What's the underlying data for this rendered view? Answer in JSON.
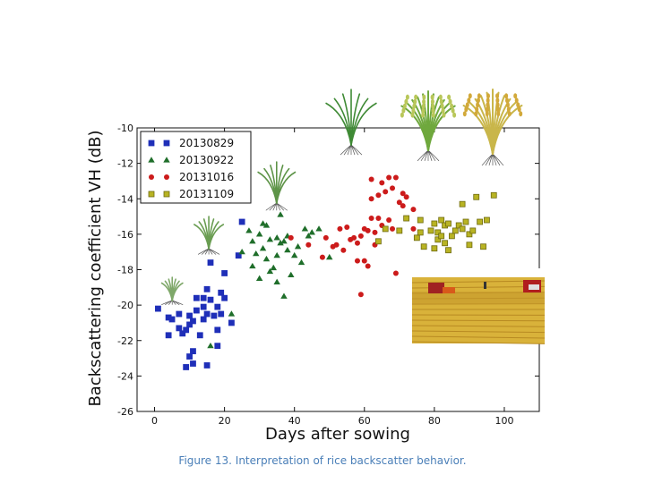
{
  "caption": "Figure 13. Interpretation of rice backscatter behavior.",
  "chart_data": {
    "type": "scatter",
    "title": "",
    "xlabel": "Days after sowing",
    "ylabel": "Backscattering coefficient VH (dB)",
    "xlim": [
      -5,
      110
    ],
    "ylim": [
      -26,
      -10
    ],
    "xticks": [
      0,
      20,
      40,
      60,
      80,
      100
    ],
    "yticks": [
      -26,
      -24,
      -22,
      -20,
      -18,
      -16,
      -14,
      -12,
      -10
    ],
    "legend_position": "top-left",
    "series": [
      {
        "name": "20130829",
        "marker": "square",
        "color": "#1f2fb8",
        "points": [
          [
            1,
            -20.2
          ],
          [
            4,
            -21.7
          ],
          [
            4,
            -20.7
          ],
          [
            5,
            -20.8
          ],
          [
            7,
            -21.3
          ],
          [
            7,
            -20.5
          ],
          [
            8,
            -21.6
          ],
          [
            9,
            -23.5
          ],
          [
            9,
            -21.4
          ],
          [
            10,
            -22.9
          ],
          [
            10,
            -21.1
          ],
          [
            10,
            -20.6
          ],
          [
            11,
            -23.3
          ],
          [
            11,
            -22.6
          ],
          [
            11,
            -20.9
          ],
          [
            12,
            -19.6
          ],
          [
            12,
            -20.3
          ],
          [
            13,
            -21.7
          ],
          [
            14,
            -20.1
          ],
          [
            14,
            -19.6
          ],
          [
            14,
            -20.8
          ],
          [
            15,
            -20.5
          ],
          [
            15,
            -19.1
          ],
          [
            15,
            -23.4
          ],
          [
            16,
            -17.6
          ],
          [
            16,
            -19.7
          ],
          [
            17,
            -20.6
          ],
          [
            18,
            -22.3
          ],
          [
            18,
            -20.1
          ],
          [
            18,
            -21.4
          ],
          [
            19,
            -19.3
          ],
          [
            19,
            -20.5
          ],
          [
            20,
            -19.6
          ],
          [
            20,
            -18.2
          ],
          [
            22,
            -21
          ],
          [
            24,
            -17.2
          ],
          [
            25,
            -15.3
          ]
        ]
      },
      {
        "name": "20130922",
        "marker": "triangle",
        "color": "#1f6e2a",
        "points": [
          [
            16,
            -22.3
          ],
          [
            22,
            -20.5
          ],
          [
            25,
            -17
          ],
          [
            27,
            -15.8
          ],
          [
            28,
            -17.8
          ],
          [
            28,
            -16.4
          ],
          [
            29,
            -17.1
          ],
          [
            30,
            -16
          ],
          [
            30,
            -18.5
          ],
          [
            31,
            -15.4
          ],
          [
            31,
            -16.8
          ],
          [
            32,
            -15.5
          ],
          [
            32,
            -17.4
          ],
          [
            33,
            -16.3
          ],
          [
            33,
            -18.1
          ],
          [
            34,
            -17.9
          ],
          [
            35,
            -16.2
          ],
          [
            35,
            -17.2
          ],
          [
            35,
            -18.7
          ],
          [
            36,
            -16.5
          ],
          [
            36,
            -14.9
          ],
          [
            37,
            -16.4
          ],
          [
            37,
            -19.5
          ],
          [
            38,
            -16.9
          ],
          [
            38,
            -16.1
          ],
          [
            39,
            -18.3
          ],
          [
            40,
            -17.2
          ],
          [
            41,
            -16.7
          ],
          [
            42,
            -17.6
          ],
          [
            43,
            -15.7
          ],
          [
            44,
            -16.1
          ],
          [
            45,
            -15.9
          ],
          [
            47,
            -15.7
          ],
          [
            50,
            -17.3
          ]
        ]
      },
      {
        "name": "20131016",
        "marker": "circle",
        "color": "#cc1b1b",
        "points": [
          [
            39,
            -16.2
          ],
          [
            44,
            -16.6
          ],
          [
            48,
            -17.3
          ],
          [
            49,
            -16.2
          ],
          [
            51,
            -16.7
          ],
          [
            52,
            -16.6
          ],
          [
            53,
            -15.7
          ],
          [
            54,
            -16.9
          ],
          [
            55,
            -15.6
          ],
          [
            56,
            -16.3
          ],
          [
            57,
            -16.2
          ],
          [
            58,
            -16.5
          ],
          [
            58,
            -17.5
          ],
          [
            59,
            -19.4
          ],
          [
            59,
            -16.1
          ],
          [
            60,
            -17.5
          ],
          [
            60,
            -15.7
          ],
          [
            61,
            -15.8
          ],
          [
            61,
            -17.8
          ],
          [
            62,
            -14
          ],
          [
            62,
            -12.9
          ],
          [
            62,
            -15.1
          ],
          [
            63,
            -15.9
          ],
          [
            63,
            -16.6
          ],
          [
            64,
            -15.1
          ],
          [
            64,
            -13.8
          ],
          [
            65,
            -13.1
          ],
          [
            65,
            -15.5
          ],
          [
            66,
            -13.6
          ],
          [
            67,
            -15.2
          ],
          [
            67,
            -12.8
          ],
          [
            68,
            -13.4
          ],
          [
            68,
            -15.7
          ],
          [
            69,
            -12.8
          ],
          [
            69,
            -18.2
          ],
          [
            70,
            -14.2
          ],
          [
            71,
            -13.7
          ],
          [
            71,
            -14.4
          ],
          [
            72,
            -13.9
          ],
          [
            74,
            -15.7
          ],
          [
            74,
            -14.6
          ]
        ]
      },
      {
        "name": "20131109",
        "marker": "square",
        "color": "#b8b323",
        "points": [
          [
            64,
            -16.4
          ],
          [
            66,
            -15.7
          ],
          [
            70,
            -15.8
          ],
          [
            72,
            -15.1
          ],
          [
            75,
            -16.2
          ],
          [
            76,
            -15.2
          ],
          [
            76,
            -15.9
          ],
          [
            77,
            -16.7
          ],
          [
            79,
            -15.8
          ],
          [
            80,
            -16.8
          ],
          [
            80,
            -15.4
          ],
          [
            81,
            -15.9
          ],
          [
            81,
            -16.3
          ],
          [
            82,
            -16.1
          ],
          [
            82,
            -15.2
          ],
          [
            83,
            -15.5
          ],
          [
            83,
            -16.5
          ],
          [
            84,
            -15.4
          ],
          [
            84,
            -16.9
          ],
          [
            85,
            -16.1
          ],
          [
            86,
            -15.8
          ],
          [
            87,
            -15.5
          ],
          [
            88,
            -14.3
          ],
          [
            88,
            -15.7
          ],
          [
            89,
            -15.3
          ],
          [
            90,
            -16
          ],
          [
            90,
            -16.6
          ],
          [
            91,
            -15.8
          ],
          [
            92,
            -13.9
          ],
          [
            93,
            -15.3
          ],
          [
            94,
            -16.7
          ],
          [
            95,
            -15.2
          ],
          [
            97,
            -13.8
          ]
        ]
      }
    ]
  },
  "illustrations": [
    {
      "name": "seedling-small",
      "kind": "rice-plant",
      "leaf_color": "#7fa86a",
      "days": 3
    },
    {
      "name": "seedling-medium",
      "kind": "rice-plant",
      "leaf_color": "#6a9d52",
      "days": 15
    },
    {
      "name": "tillering-plant",
      "kind": "rice-plant",
      "leaf_color": "#5e9448",
      "days": 39
    },
    {
      "name": "booting-plant",
      "kind": "rice-plant",
      "leaf_color": "#3f8a35",
      "top": true,
      "slot": 0
    },
    {
      "name": "heading-plant",
      "kind": "rice-plant",
      "leaf_color": "#6fa83d",
      "top": true,
      "slot": 1
    },
    {
      "name": "ripening-plant",
      "kind": "rice-plant",
      "leaf_color": "#c9b64a",
      "top": true,
      "slot": 2
    }
  ],
  "harvest_photo": {
    "name": "harvest-field-photo",
    "field_color": "#d9b23a",
    "sky_color": "#ffffff"
  }
}
